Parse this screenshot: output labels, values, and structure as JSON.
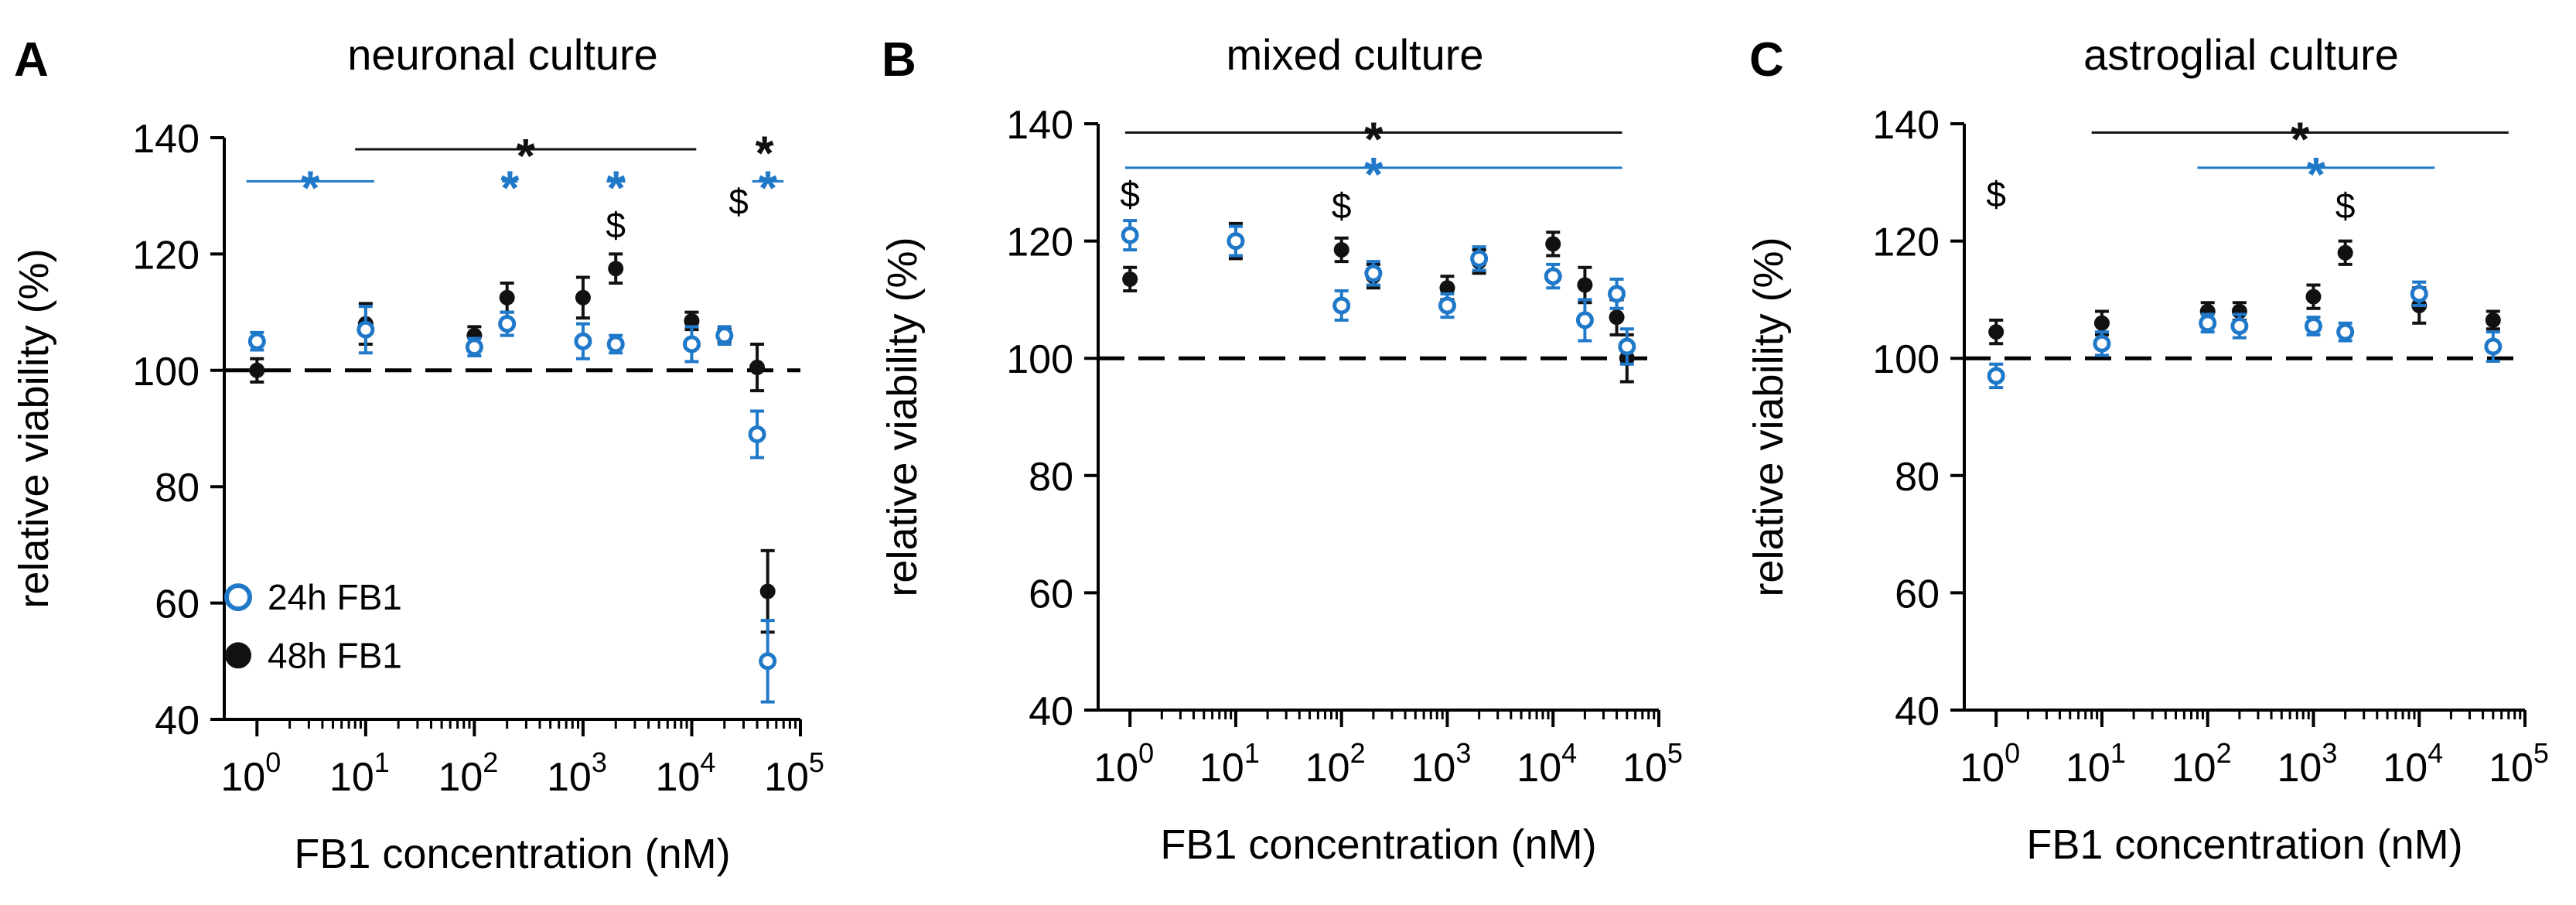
{
  "figure": {
    "x_label": "FB1 concentration (nM)",
    "y_label": "relative viability (%)",
    "x_tick_base": "10",
    "x_tick_exponents": [
      "0",
      "1",
      "2",
      "3",
      "4",
      "5"
    ],
    "legend": {
      "open": "24h FB1",
      "filled": "48h FB1"
    },
    "colors": {
      "series_24h": "#1f78c8",
      "series_48h": "#111111",
      "axis": "#000000"
    }
  },
  "chart_data": [
    {
      "type": "scatter",
      "panel_letter": "A",
      "title": "neuronal culture",
      "xscale": "log10",
      "xlim": [
        0.5,
        100000
      ],
      "ylim": [
        40,
        140
      ],
      "yticks": [
        40,
        60,
        80,
        100,
        120,
        140
      ],
      "reference_line": 100,
      "series": [
        {
          "name": "24h FB1",
          "marker": "open",
          "x": [
            1,
            10,
            100,
            200,
            1000,
            2000,
            10000,
            20000,
            40000,
            50000
          ],
          "y": [
            105,
            107,
            104,
            108,
            105,
            104.5,
            104.5,
            106,
            89,
            50
          ],
          "err": [
            1.5,
            4,
            1.5,
            2,
            3,
            1.5,
            3,
            1.5,
            4,
            7
          ]
        },
        {
          "name": "48h FB1",
          "marker": "filled",
          "x": [
            1,
            10,
            100,
            200,
            1000,
            2000,
            10000,
            20000,
            40000,
            50000
          ],
          "y": [
            100,
            108,
            106,
            112.5,
            112.5,
            117.5,
            108.5,
            106,
            100.5,
            62
          ],
          "err": [
            2,
            3.5,
            1.5,
            2.5,
            3.5,
            2.5,
            1.5,
            1,
            4,
            7
          ]
        }
      ],
      "annotations": [
        {
          "kind": "bar",
          "series": "24h FB1",
          "x_from": 0.8,
          "x_to": 12,
          "y": 132.5,
          "label": "*"
        },
        {
          "kind": "bar",
          "series": "48h FB1",
          "x_from": 8,
          "x_to": 11000,
          "y": 138,
          "label": "*"
        },
        {
          "kind": "bar",
          "series": "24h FB1",
          "x_from": 180,
          "x_to": 250,
          "y": 132.5,
          "label": "*"
        },
        {
          "kind": "bar",
          "series": "24h FB1",
          "x_from": 1650,
          "x_to": 2450,
          "y": 132.5,
          "label": "*"
        },
        {
          "kind": "bar",
          "series": "48h FB1",
          "x_from": 42000,
          "x_to": 52000,
          "y": 138.5,
          "label": "*"
        },
        {
          "kind": "bar",
          "series": "24h FB1",
          "x_from": 36000,
          "x_to": 70000,
          "y": 132.5,
          "label": "*"
        },
        {
          "kind": "text",
          "x": 2000,
          "y": 125,
          "label": "$"
        },
        {
          "kind": "text",
          "x": 27000,
          "y": 129,
          "label": "$"
        }
      ]
    },
    {
      "type": "scatter",
      "panel_letter": "B",
      "title": "mixed culture",
      "xscale": "log10",
      "xlim": [
        0.5,
        100000
      ],
      "ylim": [
        40,
        140
      ],
      "yticks": [
        40,
        60,
        80,
        100,
        120,
        140
      ],
      "reference_line": 100,
      "series": [
        {
          "name": "24h FB1",
          "marker": "open",
          "x": [
            1,
            10,
            100,
            200,
            1000,
            2000,
            10000,
            20000,
            40000,
            50000
          ],
          "y": [
            121,
            120,
            109,
            114.5,
            109,
            117,
            114,
            106.5,
            111,
            102
          ],
          "err": [
            2.5,
            2.5,
            2.5,
            2,
            2,
            2,
            2,
            3.5,
            2.5,
            3
          ]
        },
        {
          "name": "48h FB1",
          "marker": "filled",
          "x": [
            1,
            10,
            100,
            200,
            1000,
            2000,
            10000,
            20000,
            40000,
            50000
          ],
          "y": [
            113.5,
            120,
            118.5,
            114,
            112,
            116.5,
            119.5,
            112.5,
            107,
            100
          ],
          "err": [
            2,
            3,
            2,
            2,
            2,
            2,
            2,
            3,
            3,
            4
          ]
        }
      ],
      "annotations": [
        {
          "kind": "bar",
          "series": "48h FB1",
          "x_from": 0.9,
          "x_to": 45000,
          "y": 138.5,
          "label": "*"
        },
        {
          "kind": "bar",
          "series": "24h FB1",
          "x_from": 0.9,
          "x_to": 45000,
          "y": 132.5,
          "label": "*"
        },
        {
          "kind": "text",
          "x": 1,
          "y": 128,
          "label": "$"
        },
        {
          "kind": "text",
          "x": 100,
          "y": 126,
          "label": "$"
        }
      ]
    },
    {
      "type": "scatter",
      "panel_letter": "C",
      "title": "astroglial culture",
      "xscale": "log10",
      "xlim": [
        0.5,
        100000
      ],
      "ylim": [
        40,
        140
      ],
      "yticks": [
        40,
        60,
        80,
        100,
        120,
        140
      ],
      "reference_line": 100,
      "series": [
        {
          "name": "24h FB1",
          "marker": "open",
          "x": [
            1,
            10,
            100,
            200,
            1000,
            2000,
            10000,
            50000
          ],
          "y": [
            97,
            102.5,
            106,
            105.5,
            105.5,
            104.5,
            111,
            102
          ],
          "err": [
            2,
            2,
            1.5,
            2,
            1.5,
            1.5,
            2,
            2.5
          ]
        },
        {
          "name": "48h FB1",
          "marker": "filled",
          "x": [
            1,
            10,
            100,
            200,
            1000,
            2000,
            10000,
            50000
          ],
          "y": [
            104.5,
            106,
            108,
            108,
            110.5,
            118,
            109,
            106.5
          ],
          "err": [
            2,
            2,
            1.5,
            1.5,
            2,
            2,
            3,
            1.5
          ]
        }
      ],
      "annotations": [
        {
          "kind": "bar",
          "series": "48h FB1",
          "x_from": 8,
          "x_to": 70000,
          "y": 138.5,
          "label": "*"
        },
        {
          "kind": "bar",
          "series": "24h FB1",
          "x_from": 80,
          "x_to": 14000,
          "y": 132.5,
          "label": "*"
        },
        {
          "kind": "text",
          "x": 1,
          "y": 128,
          "label": "$"
        },
        {
          "kind": "text",
          "x": 2000,
          "y": 126,
          "label": "$"
        }
      ]
    }
  ]
}
